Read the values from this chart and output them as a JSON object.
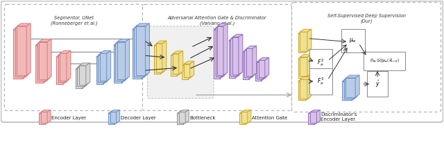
{
  "enc_face": "#f2b8b8",
  "enc_edge": "#d08080",
  "dec_face": "#b8cce8",
  "dec_edge": "#7090c0",
  "btn_face": "#d8d8d8",
  "btn_edge": "#909090",
  "att_face": "#f0e090",
  "att_edge": "#c8a830",
  "disc_face": "#d8c0e8",
  "disc_edge": "#9070b8",
  "box1_label": "Segmentor, UNet\n(Ronneberger et al.)",
  "box2_label": "Adversarial Attention Gate & Discriminator\n(Valvano et al.)",
  "box3_label": "Self-Supervised Deep Supervision\n(Our)"
}
